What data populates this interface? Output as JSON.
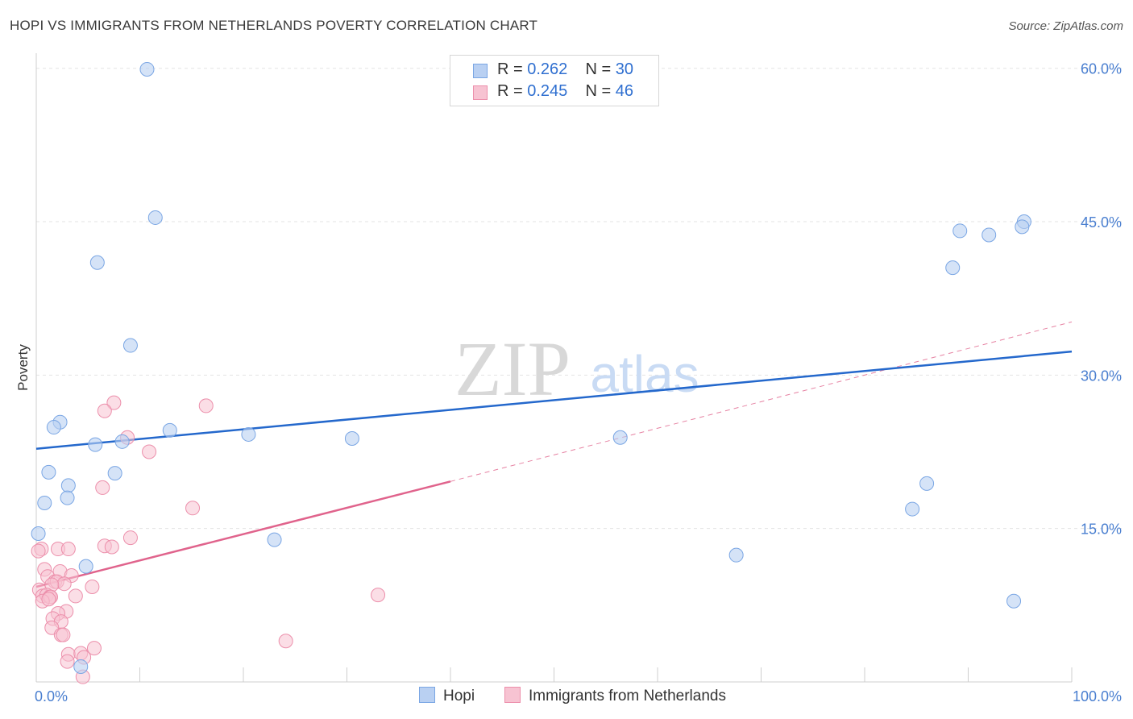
{
  "title": "HOPI VS IMMIGRANTS FROM NETHERLANDS POVERTY CORRELATION CHART",
  "source": "Source: ZipAtlas.com",
  "watermark": {
    "zip": "ZIP",
    "atlas": "atlas"
  },
  "legend": {
    "rows": [
      {
        "r_label": "R = ",
        "r_value": "0.262",
        "n_label": "N = ",
        "n_value": "30"
      },
      {
        "r_label": "R = ",
        "r_value": "0.245",
        "n_label": "N = ",
        "n_value": "46"
      }
    ]
  },
  "colors": {
    "hopi_fill": "#b9d0f2",
    "hopi_stroke": "#7aa6e4",
    "hopi_line": "#2468cc",
    "neth_fill": "#f7c3d2",
    "neth_stroke": "#ec8fab",
    "neth_line": "#e0638c",
    "grid": "#e3e3e3",
    "tick": "#4a7fd0"
  },
  "chart_data": {
    "type": "scatter",
    "title": "HOPI VS IMMIGRANTS FROM NETHERLANDS POVERTY CORRELATION CHART",
    "xlabel": "",
    "ylabel": "Poverty",
    "xlim": [
      0,
      100
    ],
    "ylim": [
      0,
      61
    ],
    "x_tick_labels": [
      {
        "value": 0,
        "label": "0.0%"
      },
      {
        "value": 100,
        "label": "100.0%"
      }
    ],
    "y_tick_labels": [
      {
        "value": 15,
        "label": "15.0%"
      },
      {
        "value": 30,
        "label": "30.0%"
      },
      {
        "value": 45,
        "label": "45.0%"
      },
      {
        "value": 60,
        "label": "60.0%"
      }
    ],
    "series": [
      {
        "name": "Hopi",
        "r": 0.262,
        "n": 30,
        "trend": {
          "x": [
            0,
            100
          ],
          "y": [
            22.8,
            32.3
          ],
          "style": "solid"
        },
        "points": [
          [
            10.7,
            59.9
          ],
          [
            11.5,
            45.4
          ],
          [
            5.9,
            41.0
          ],
          [
            9.1,
            32.9
          ],
          [
            2.3,
            25.4
          ],
          [
            1.7,
            24.9
          ],
          [
            12.9,
            24.6
          ],
          [
            20.5,
            24.2
          ],
          [
            30.5,
            23.8
          ],
          [
            5.7,
            23.2
          ],
          [
            8.3,
            23.5
          ],
          [
            56.4,
            23.9
          ],
          [
            1.2,
            20.5
          ],
          [
            7.6,
            20.4
          ],
          [
            3.1,
            19.2
          ],
          [
            3.0,
            18.0
          ],
          [
            0.8,
            17.5
          ],
          [
            0.2,
            14.5
          ],
          [
            23.0,
            13.9
          ],
          [
            4.8,
            11.3
          ],
          [
            67.6,
            12.4
          ],
          [
            86.0,
            19.4
          ],
          [
            84.6,
            16.9
          ],
          [
            88.5,
            40.5
          ],
          [
            89.2,
            44.1
          ],
          [
            92.0,
            43.7
          ],
          [
            95.4,
            45.0
          ],
          [
            95.2,
            44.5
          ],
          [
            94.4,
            7.9
          ],
          [
            4.3,
            1.5
          ]
        ]
      },
      {
        "name": "Immigrants from Netherlands",
        "r": 0.245,
        "n": 46,
        "trend": {
          "x": [
            0,
            40
          ],
          "y": [
            9.3,
            19.6
          ],
          "style": "solid",
          "extended": {
            "x": [
              40,
              100
            ],
            "y": [
              19.6,
              35.2
            ],
            "style": "dashed"
          }
        },
        "points": [
          [
            7.5,
            27.3
          ],
          [
            6.6,
            26.5
          ],
          [
            16.4,
            27.0
          ],
          [
            8.8,
            23.9
          ],
          [
            10.9,
            22.5
          ],
          [
            6.4,
            19.0
          ],
          [
            15.1,
            17.0
          ],
          [
            9.1,
            14.1
          ],
          [
            6.6,
            13.3
          ],
          [
            7.3,
            13.2
          ],
          [
            0.5,
            13.0
          ],
          [
            2.1,
            13.0
          ],
          [
            3.1,
            13.0
          ],
          [
            0.8,
            11.0
          ],
          [
            2.3,
            10.8
          ],
          [
            3.4,
            10.4
          ],
          [
            1.1,
            10.3
          ],
          [
            1.8,
            9.8
          ],
          [
            2.0,
            9.8
          ],
          [
            2.7,
            9.6
          ],
          [
            1.5,
            9.5
          ],
          [
            0.3,
            9.0
          ],
          [
            5.4,
            9.3
          ],
          [
            0.6,
            8.4
          ],
          [
            1.0,
            8.5
          ],
          [
            1.3,
            8.3
          ],
          [
            1.4,
            8.3
          ],
          [
            3.8,
            8.4
          ],
          [
            33.0,
            8.5
          ],
          [
            2.9,
            6.9
          ],
          [
            2.1,
            6.7
          ],
          [
            1.6,
            6.2
          ],
          [
            2.4,
            5.9
          ],
          [
            1.5,
            5.3
          ],
          [
            2.4,
            4.6
          ],
          [
            2.6,
            4.6
          ],
          [
            24.1,
            4.0
          ],
          [
            5.6,
            3.3
          ],
          [
            3.1,
            2.7
          ],
          [
            4.3,
            2.8
          ],
          [
            4.6,
            2.4
          ],
          [
            3.0,
            2.0
          ],
          [
            4.5,
            0.5
          ],
          [
            0.2,
            12.8
          ],
          [
            0.6,
            7.9
          ],
          [
            1.2,
            8.1
          ]
        ]
      }
    ]
  },
  "bottom_legend": [
    {
      "label": "Hopi"
    },
    {
      "label": "Immigrants from Netherlands"
    }
  ]
}
